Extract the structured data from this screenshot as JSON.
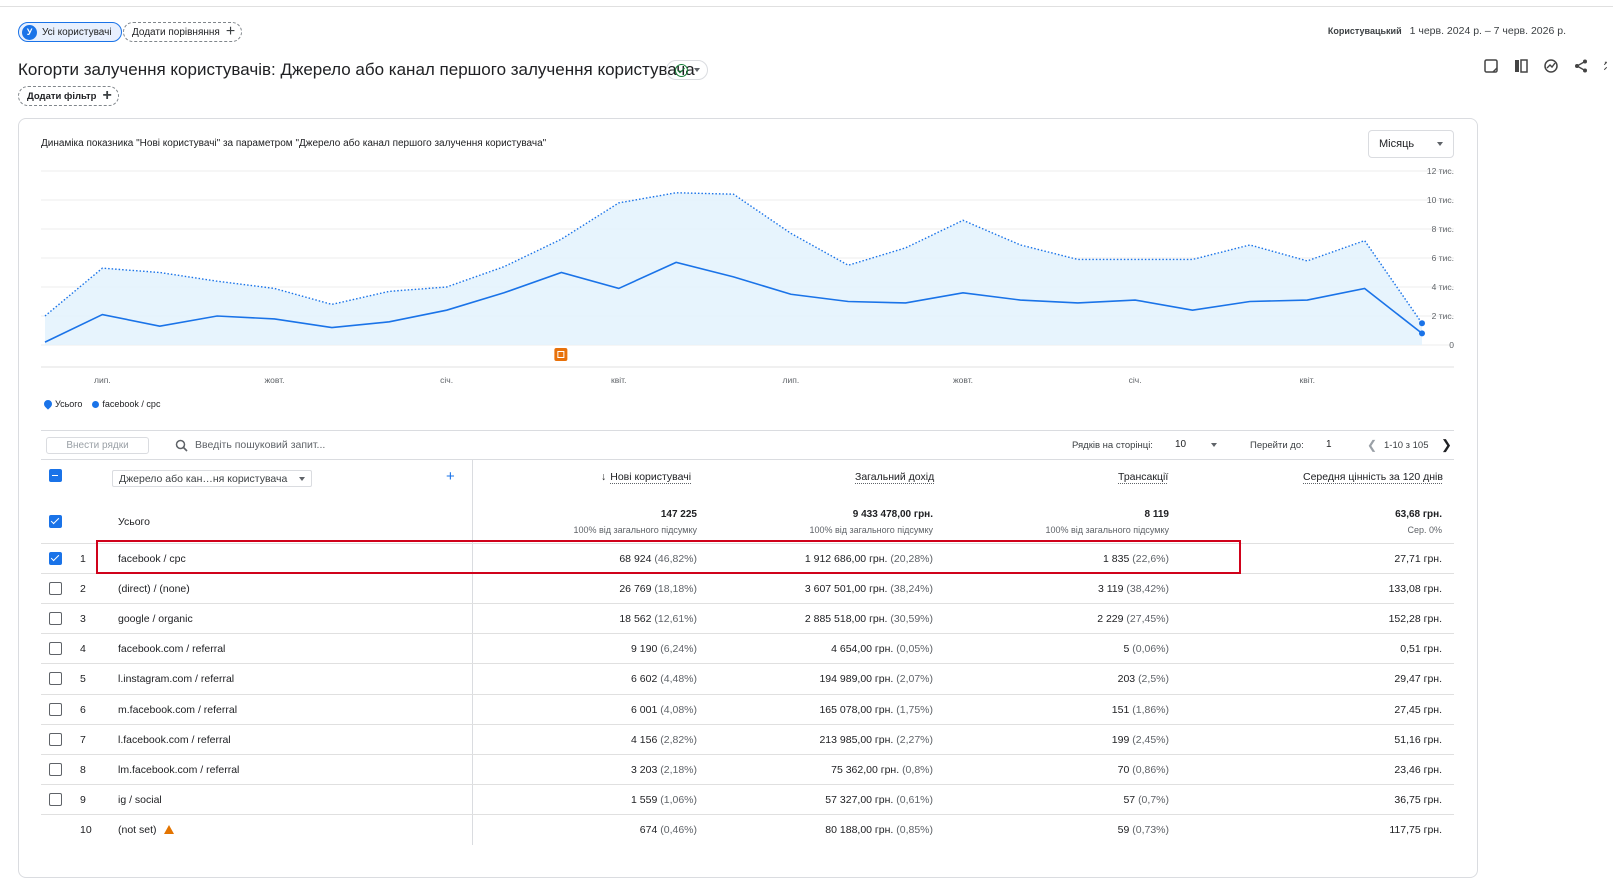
{
  "filters": {
    "user_segment_avatar": "У",
    "user_segment": "Усі користувачі",
    "add_comparison": "Додати порівняння",
    "add_filter": "Додати фільтр"
  },
  "date": {
    "type": "Користувацький",
    "range": "1 черв. 2024 р. – 7 черв. 2026 р."
  },
  "report": {
    "title": "Когорти залучення користувачів: Джерело або канал першого залучення користувача"
  },
  "toolbar": {
    "icons": [
      "insights-note-icon",
      "compare-icon",
      "analytics-icon",
      "share-icon",
      "expand-icon"
    ]
  },
  "chart_header": {
    "title": "Динаміка показника \"Нові користувачі\" за параметром \"Джерело або канал першого залучення користувача\"",
    "period": "Місяць"
  },
  "chart_data": {
    "type": "area",
    "x": [
      "2024-06",
      "2024-07",
      "2024-08",
      "2024-09",
      "2024-10",
      "2024-11",
      "2024-12",
      "2025-01",
      "2025-02",
      "2025-03",
      "2025-04",
      "2025-05",
      "2025-06",
      "2025-07",
      "2025-08",
      "2025-09",
      "2025-10",
      "2025-11",
      "2025-12",
      "2026-01",
      "2026-02",
      "2026-03",
      "2026-04",
      "2026-05",
      "2026-06"
    ],
    "x_tick_labels": [
      "лип.",
      "жовт.",
      "січ.",
      "квіт.",
      "лип.",
      "жовт.",
      "січ.",
      "квіт."
    ],
    "y_tick_labels": [
      "0",
      "2 тис.",
      "4 тис.",
      "6 тис.",
      "8 тис.",
      "10 тис.",
      "12 тис."
    ],
    "ylim": [
      0,
      12000
    ],
    "series": [
      {
        "name": "Усього",
        "values": [
          2000,
          5300,
          5000,
          4400,
          3900,
          2800,
          3700,
          4000,
          5400,
          7300,
          9800,
          10500,
          10400,
          7700,
          5500,
          6700,
          8600,
          6900,
          5900,
          5900,
          5900,
          6900,
          5800,
          7200,
          1500
        ],
        "color": "#1a73e8",
        "style": "dotted-area"
      },
      {
        "name": "facebook / cpc",
        "values": [
          200,
          2100,
          1300,
          2000,
          1800,
          1200,
          1600,
          2400,
          3600,
          5000,
          3900,
          5700,
          4700,
          3500,
          3000,
          2900,
          3600,
          3100,
          2900,
          3100,
          2400,
          3000,
          3100,
          3900,
          800
        ],
        "color": "#1a73e8",
        "style": "solid"
      }
    ],
    "legend": [
      "Усього",
      "facebook / cpc"
    ],
    "annotation_icon": "annotation-icon"
  },
  "table_bar": {
    "plot_rows": "Внести рядки",
    "search_placeholder": "Введіть пошуковий запит...",
    "rows_per_page_label": "Рядків на сторінці:",
    "rows_per_page": "10",
    "goto_label": "Перейти до:",
    "goto_value": "1",
    "range": "1-10 з 105"
  },
  "table": {
    "dimension": "Джерело або кан…ня користувача",
    "columns": [
      "Нові користувачі",
      "Загальний дохід",
      "Трансакції",
      "Середня цінність за 120 днів"
    ],
    "sort_arrow": "↓",
    "totals": {
      "label": "Усього",
      "values": [
        "147 225",
        "9 433 478,00 грн.",
        "8 119",
        "63,68 грн."
      ],
      "subs": [
        "100% від загального підсумку",
        "100% від загального підсумку",
        "100% від загального підсумку",
        "Сер. 0%"
      ]
    },
    "rows": [
      {
        "rank": "1",
        "name": "facebook / cpc",
        "checked": true,
        "users": "68 924",
        "users_pct": "(46,82%)",
        "revenue": "1 912 686,00 грн.",
        "revenue_pct": "(20,28%)",
        "tx": "1 835",
        "tx_pct": "(22,6%)",
        "ltv": "27,71 грн."
      },
      {
        "rank": "2",
        "name": "(direct) / (none)",
        "checked": false,
        "users": "26 769",
        "users_pct": "(18,18%)",
        "revenue": "3 607 501,00 грн.",
        "revenue_pct": "(38,24%)",
        "tx": "3 119",
        "tx_pct": "(38,42%)",
        "ltv": "133,08 грн."
      },
      {
        "rank": "3",
        "name": "google / organic",
        "checked": false,
        "users": "18 562",
        "users_pct": "(12,61%)",
        "revenue": "2 885 518,00 грн.",
        "revenue_pct": "(30,59%)",
        "tx": "2 229",
        "tx_pct": "(27,45%)",
        "ltv": "152,28 грн."
      },
      {
        "rank": "4",
        "name": "facebook.com / referral",
        "checked": false,
        "users": "9 190",
        "users_pct": "(6,24%)",
        "revenue": "4 654,00 грн.",
        "revenue_pct": "(0,05%)",
        "tx": "5",
        "tx_pct": "(0,06%)",
        "ltv": "0,51 грн."
      },
      {
        "rank": "5",
        "name": "l.instagram.com / referral",
        "checked": false,
        "users": "6 602",
        "users_pct": "(4,48%)",
        "revenue": "194 989,00 грн.",
        "revenue_pct": "(2,07%)",
        "tx": "203",
        "tx_pct": "(2,5%)",
        "ltv": "29,47 грн."
      },
      {
        "rank": "6",
        "name": "m.facebook.com / referral",
        "checked": false,
        "users": "6 001",
        "users_pct": "(4,08%)",
        "revenue": "165 078,00 грн.",
        "revenue_pct": "(1,75%)",
        "tx": "151",
        "tx_pct": "(1,86%)",
        "ltv": "27,45 грн."
      },
      {
        "rank": "7",
        "name": "l.facebook.com / referral",
        "checked": false,
        "users": "4 156",
        "users_pct": "(2,82%)",
        "revenue": "213 985,00 грн.",
        "revenue_pct": "(2,27%)",
        "tx": "199",
        "tx_pct": "(2,45%)",
        "ltv": "51,16 грн."
      },
      {
        "rank": "8",
        "name": "lm.facebook.com / referral",
        "checked": false,
        "users": "3 203",
        "users_pct": "(2,18%)",
        "revenue": "75 362,00 грн.",
        "revenue_pct": "(0,8%)",
        "tx": "70",
        "tx_pct": "(0,86%)",
        "ltv": "23,46 грн."
      },
      {
        "rank": "9",
        "name": "ig / social",
        "checked": false,
        "users": "1 559",
        "users_pct": "(1,06%)",
        "revenue": "57 327,00 грн.",
        "revenue_pct": "(0,61%)",
        "tx": "57",
        "tx_pct": "(0,7%)",
        "ltv": "36,75 грн."
      },
      {
        "rank": "10",
        "name": "(not set)",
        "checked": null,
        "warning": true,
        "users": "674",
        "users_pct": "(0,46%)",
        "revenue": "80 188,00 грн.",
        "revenue_pct": "(0,85%)",
        "tx": "59",
        "tx_pct": "(0,73%)",
        "ltv": "117,75 грн."
      }
    ]
  },
  "highlight_color": "#d0021b"
}
